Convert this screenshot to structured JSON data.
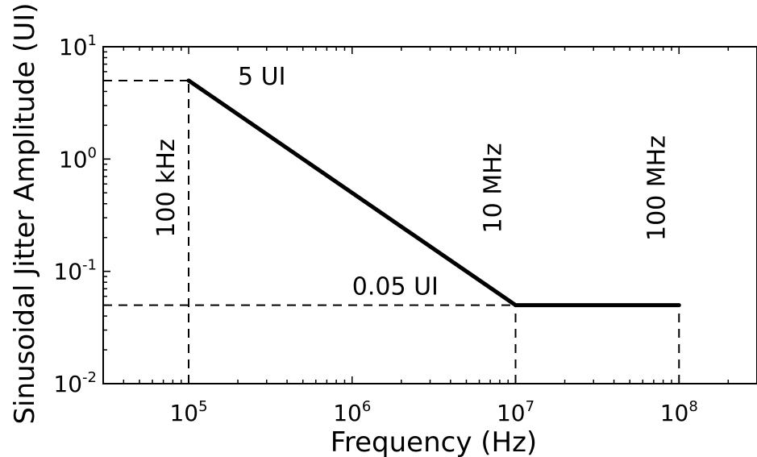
{
  "chart_data": {
    "type": "line",
    "title": "",
    "xlabel": "Frequency (Hz)",
    "ylabel": "Sinusoidal Jitter Amplitude (UI)",
    "xscale": "log",
    "yscale": "log",
    "xlim": [
      30000,
      300000000
    ],
    "ylim": [
      0.01,
      10
    ],
    "grid": false,
    "x_ticks": [
      {
        "value": 100000,
        "base": "10",
        "exp": "5"
      },
      {
        "value": 1000000,
        "base": "10",
        "exp": "6"
      },
      {
        "value": 10000000,
        "base": "10",
        "exp": "7"
      },
      {
        "value": 100000000,
        "base": "10",
        "exp": "8"
      }
    ],
    "y_ticks": [
      {
        "value": 10,
        "base": "10",
        "exp": "1"
      },
      {
        "value": 1,
        "base": "10",
        "exp": "0"
      },
      {
        "value": 0.1,
        "base": "10",
        "exp": "-1"
      },
      {
        "value": 0.01,
        "base": "10",
        "exp": "-2"
      }
    ],
    "series": [
      {
        "color": "#000000",
        "style": "solid",
        "x": [
          100000,
          10000000,
          100000000
        ],
        "y": [
          5,
          0.05,
          0.05
        ]
      }
    ],
    "reference_lines": [
      {
        "orientation": "vertical",
        "x": 100000,
        "y_to": 5,
        "style": "dashed"
      },
      {
        "orientation": "vertical",
        "x": 10000000,
        "y_to": 0.05,
        "style": "dashed"
      },
      {
        "orientation": "vertical",
        "x": 100000000,
        "y_to": 0.05,
        "style": "dashed"
      },
      {
        "orientation": "horizontal",
        "y": 5,
        "x_to": 100000,
        "style": "dashed"
      },
      {
        "orientation": "horizontal",
        "y": 0.05,
        "x_to": 10000000,
        "style": "dashed"
      }
    ],
    "annotations": [
      {
        "text": "5 UI",
        "x": 200000,
        "y": 4.6,
        "rotate": false
      },
      {
        "text": "0.05 UI",
        "x": 1000000,
        "y": 0.062,
        "rotate": false
      },
      {
        "text": "100 kHz",
        "x": 100000,
        "y": 0.55,
        "rotate": true
      },
      {
        "text": "10 MHz",
        "x": 10000000,
        "y": 0.55,
        "rotate": true
      },
      {
        "text": "100 MHz",
        "x": 100000000,
        "y": 0.55,
        "rotate": true
      }
    ]
  }
}
